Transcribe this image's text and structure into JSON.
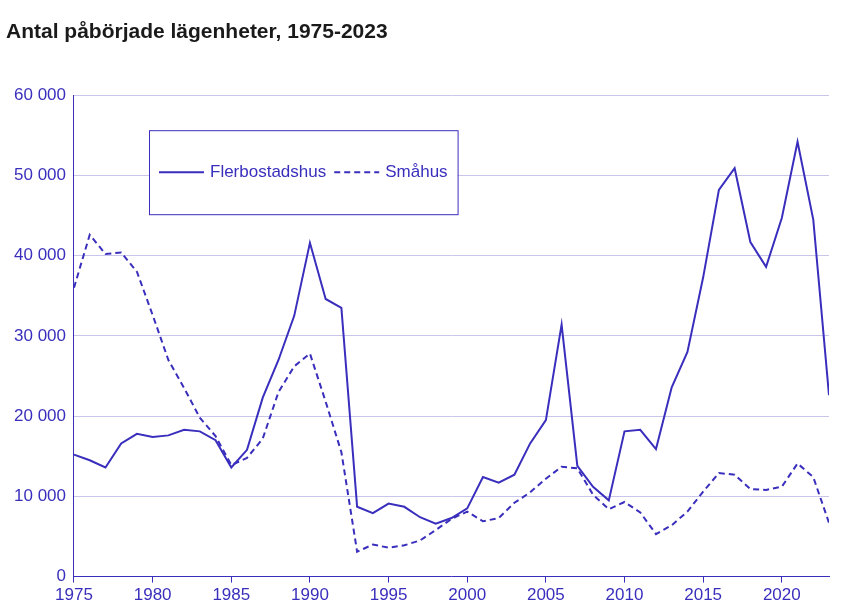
{
  "chart_data": {
    "type": "line",
    "title": "Antal påbörjade lägenheter, 1975-2023",
    "x": [
      1975,
      1976,
      1977,
      1978,
      1979,
      1980,
      1981,
      1982,
      1983,
      1984,
      1985,
      1986,
      1987,
      1988,
      1989,
      1990,
      1991,
      1992,
      1993,
      1994,
      1995,
      1996,
      1997,
      1998,
      1999,
      2000,
      2001,
      2002,
      2003,
      2004,
      2005,
      2006,
      2007,
      2008,
      2009,
      2010,
      2011,
      2012,
      2013,
      2014,
      2015,
      2016,
      2017,
      2018,
      2019,
      2020,
      2021,
      2022,
      2023
    ],
    "series": [
      {
        "name": "Flerbostadshus",
        "color": "#3a2fbd",
        "line_style": "solid",
        "values": [
          15200,
          14500,
          13600,
          16600,
          17800,
          17400,
          17600,
          18300,
          18100,
          17000,
          13600,
          15800,
          22300,
          27000,
          32500,
          41600,
          34600,
          33500,
          8700,
          7900,
          9100,
          8700,
          7400,
          6600,
          7300,
          8500,
          12400,
          11700,
          12700,
          16600,
          19500,
          31400,
          13800,
          11200,
          9500,
          18100,
          18300,
          15900,
          23600,
          28000,
          37300,
          48200,
          50900,
          41700,
          38600,
          44700,
          54200,
          44500,
          22600
        ]
      },
      {
        "name": "Småhus",
        "color": "#3a2fbd",
        "line_style": "dashed",
        "values": [
          36000,
          42600,
          40200,
          40400,
          38000,
          32600,
          27000,
          23500,
          19800,
          17500,
          13900,
          14800,
          17200,
          23000,
          26200,
          27800,
          21800,
          15500,
          3100,
          4000,
          3600,
          3900,
          4500,
          5800,
          7200,
          8100,
          6900,
          7300,
          9200,
          10500,
          12200,
          13700,
          13500,
          10200,
          8400,
          9300,
          8000,
          5300,
          6400,
          8100,
          10600,
          12900,
          12700,
          10900,
          10800,
          11200,
          14100,
          12400,
          6700
        ]
      }
    ],
    "xlim": [
      1975,
      2023
    ],
    "xticks": [
      1975,
      1980,
      1985,
      1990,
      1995,
      2000,
      2005,
      2010,
      2015,
      2020
    ],
    "ylim": [
      0,
      60000
    ],
    "yticks": [
      0,
      {
        "value": 10000,
        "label": "10 000"
      },
      {
        "value": 20000,
        "label": "20 000"
      },
      {
        "value": 30000,
        "label": "30 000"
      },
      {
        "value": 40000,
        "label": "40 000"
      },
      {
        "value": 50000,
        "label": "50 000"
      },
      {
        "value": 60000,
        "label": "60 000"
      }
    ],
    "grid": true,
    "legend": "upper left"
  }
}
